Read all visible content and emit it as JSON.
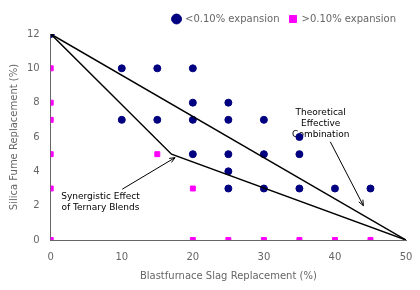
{
  "chart_data": {
    "type": "scatter",
    "xlabel": "Blastfurnace Slag Replacement (%)",
    "ylabel": "Silica Fume Replacement (%)",
    "xlim": [
      0,
      50
    ],
    "ylim": [
      0,
      12
    ],
    "xticks": [
      0,
      10,
      20,
      30,
      40,
      50
    ],
    "yticks": [
      0,
      2,
      4,
      6,
      8,
      10,
      12
    ],
    "grid": false,
    "legend": "upper right",
    "series": [
      {
        "type": "line",
        "color": "#000000",
        "x": [
          0,
          50
        ],
        "values": [
          12,
          0
        ]
      },
      {
        "type": "line",
        "color": "#000000",
        "x": [
          0,
          17,
          50
        ],
        "values": [
          12,
          5,
          0
        ]
      },
      {
        "name": "<0.10% expansion",
        "type": "scatter",
        "color": "#000080",
        "marker": "circle",
        "x": [
          0,
          10,
          10,
          15,
          15,
          20,
          20,
          20,
          20,
          25,
          25,
          25,
          25,
          25,
          30,
          30,
          30,
          35,
          35,
          35,
          40,
          45
        ],
        "values": [
          12,
          10,
          7,
          10,
          7,
          10,
          8,
          7,
          5,
          8,
          7,
          5,
          4,
          3,
          7,
          5,
          3,
          6,
          5,
          3,
          3,
          3
        ]
      },
      {
        "name": ">0.10% expansion",
        "type": "scatter",
        "color": "#FF00FF",
        "marker": "square",
        "x": [
          0,
          0,
          0,
          0,
          0,
          0,
          15,
          20,
          20,
          25,
          30,
          35,
          40,
          45
        ],
        "values": [
          10,
          8,
          7,
          5,
          3,
          0,
          5,
          3,
          0,
          0,
          0,
          0,
          0,
          0
        ]
      }
    ],
    "annotations": [
      {
        "text": "Theoretical\nEffective\nCombination",
        "xy": [
          44,
          2.0
        ],
        "xytext": [
          38,
          6.8
        ]
      },
      {
        "text": "Synergistic Effect\nof Ternary Blends",
        "xy": [
          17.5,
          4.8
        ],
        "xytext": [
          7,
          2.2
        ]
      }
    ]
  }
}
